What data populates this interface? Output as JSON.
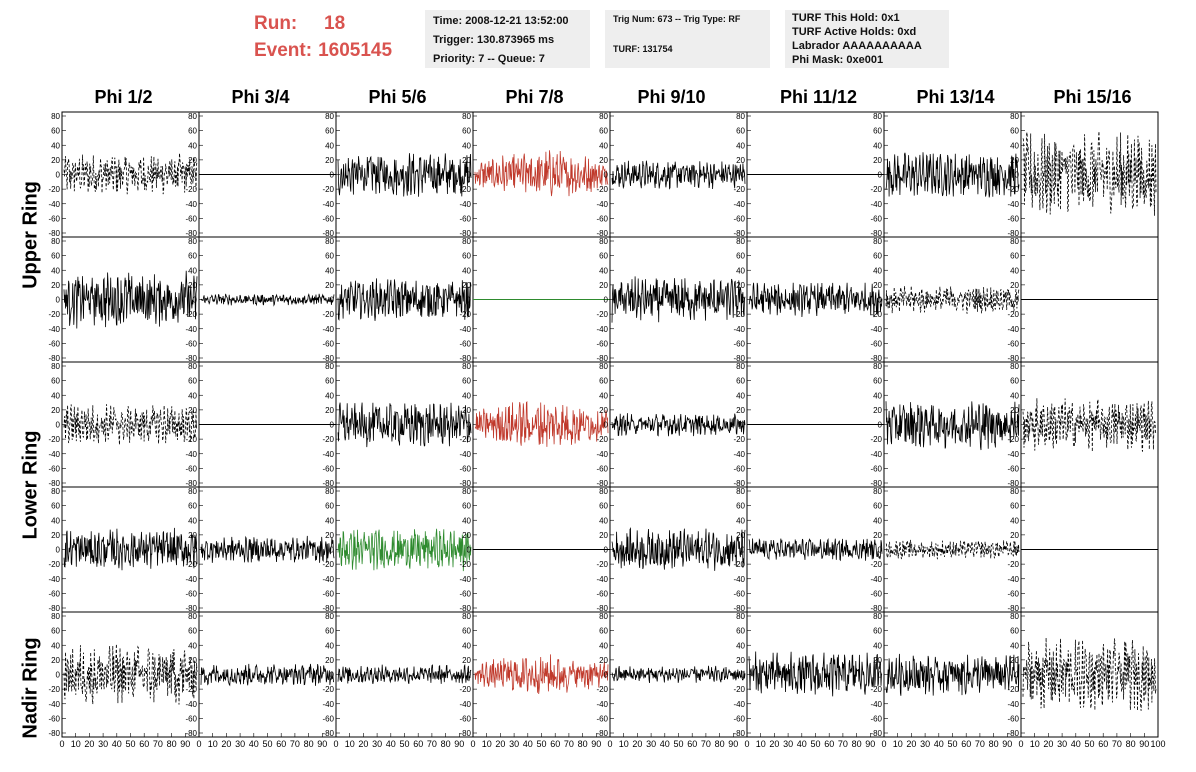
{
  "header": {
    "run_label": "Run:",
    "run_value": "18",
    "event_label": "Event:",
    "event_value": "1605145"
  },
  "info_time": {
    "time": "Time: 2008-12-21 13:52:00",
    "trigger": "Trigger: 130.873965 ms",
    "priority": "Priority: 7 -- Queue: 7"
  },
  "info_trig": {
    "trig": "Trig Num: 673 -- Trig Type: RF",
    "turf": "TURF: 131754"
  },
  "info_turf": {
    "hold": "TURF This Hold: 0x1",
    "active": "TURF Active Holds: 0xd",
    "labrador": "Labrador AAAAAAAAAA",
    "phimask": "Phi Mask: 0xe001"
  },
  "columns": [
    "Phi 1/2",
    "Phi 3/4",
    "Phi 5/6",
    "Phi 7/8",
    "Phi 9/10",
    "Phi 11/12",
    "Phi 13/14",
    "Phi 15/16"
  ],
  "rings": [
    "Upper Ring",
    "Lower Ring",
    "Nadir Ring"
  ],
  "colors": {
    "black": "#000000",
    "red": "#c0392b",
    "green": "#2e8b2e",
    "title": "#d9534f"
  },
  "chart_data": {
    "type": "line",
    "title": "",
    "xlim": [
      0,
      100
    ],
    "ylim": [
      -80,
      80
    ],
    "x_ticks": [
      "0",
      "10",
      "20",
      "30",
      "40",
      "50",
      "60",
      "70",
      "80",
      "90",
      "100"
    ],
    "y_ticks": [
      "80",
      "60",
      "40",
      "20",
      "0",
      "-20",
      "-40",
      "-60",
      "-80"
    ],
    "panel_rows": 5,
    "panel_cols": 8,
    "waveforms": [
      [
        {
          "style": "dashed",
          "amp": 22
        },
        {
          "style": "flat"
        },
        {
          "style": "solid",
          "amp": 24
        },
        {
          "style": "red",
          "amp": 26
        },
        {
          "style": "solid",
          "amp": 15
        },
        {
          "style": "flat"
        },
        {
          "style": "solid",
          "amp": 24
        },
        {
          "style": "dashed",
          "amp": 45
        }
      ],
      [
        {
          "style": "solid",
          "amp": 30
        },
        {
          "style": "solid",
          "amp": 6
        },
        {
          "style": "solid",
          "amp": 22
        },
        {
          "style": "greenflat"
        },
        {
          "style": "solid",
          "amp": 24
        },
        {
          "style": "solid",
          "amp": 18
        },
        {
          "style": "dashed",
          "amp": 15
        },
        {
          "style": "flat"
        }
      ],
      [
        {
          "style": "dashed",
          "amp": 22
        },
        {
          "style": "flat"
        },
        {
          "style": "solid",
          "amp": 24
        },
        {
          "style": "red",
          "amp": 26
        },
        {
          "style": "solid",
          "amp": 12
        },
        {
          "style": "flat"
        },
        {
          "style": "solid",
          "amp": 26
        },
        {
          "style": "dashed",
          "amp": 28
        }
      ],
      [
        {
          "style": "solid",
          "amp": 22
        },
        {
          "style": "solid",
          "amp": 14
        },
        {
          "style": "green",
          "amp": 22
        },
        {
          "style": "flat"
        },
        {
          "style": "solid",
          "amp": 22
        },
        {
          "style": "solid",
          "amp": 12
        },
        {
          "style": "dashed",
          "amp": 10
        },
        {
          "style": "flat"
        }
      ],
      [
        {
          "style": "dashed",
          "amp": 32
        },
        {
          "style": "solid",
          "amp": 12
        },
        {
          "style": "solid",
          "amp": 10
        },
        {
          "style": "red",
          "amp": 22
        },
        {
          "style": "solid",
          "amp": 9
        },
        {
          "style": "solid",
          "amp": 24
        },
        {
          "style": "solid",
          "amp": 22
        },
        {
          "style": "dashed",
          "amp": 38
        }
      ]
    ]
  }
}
